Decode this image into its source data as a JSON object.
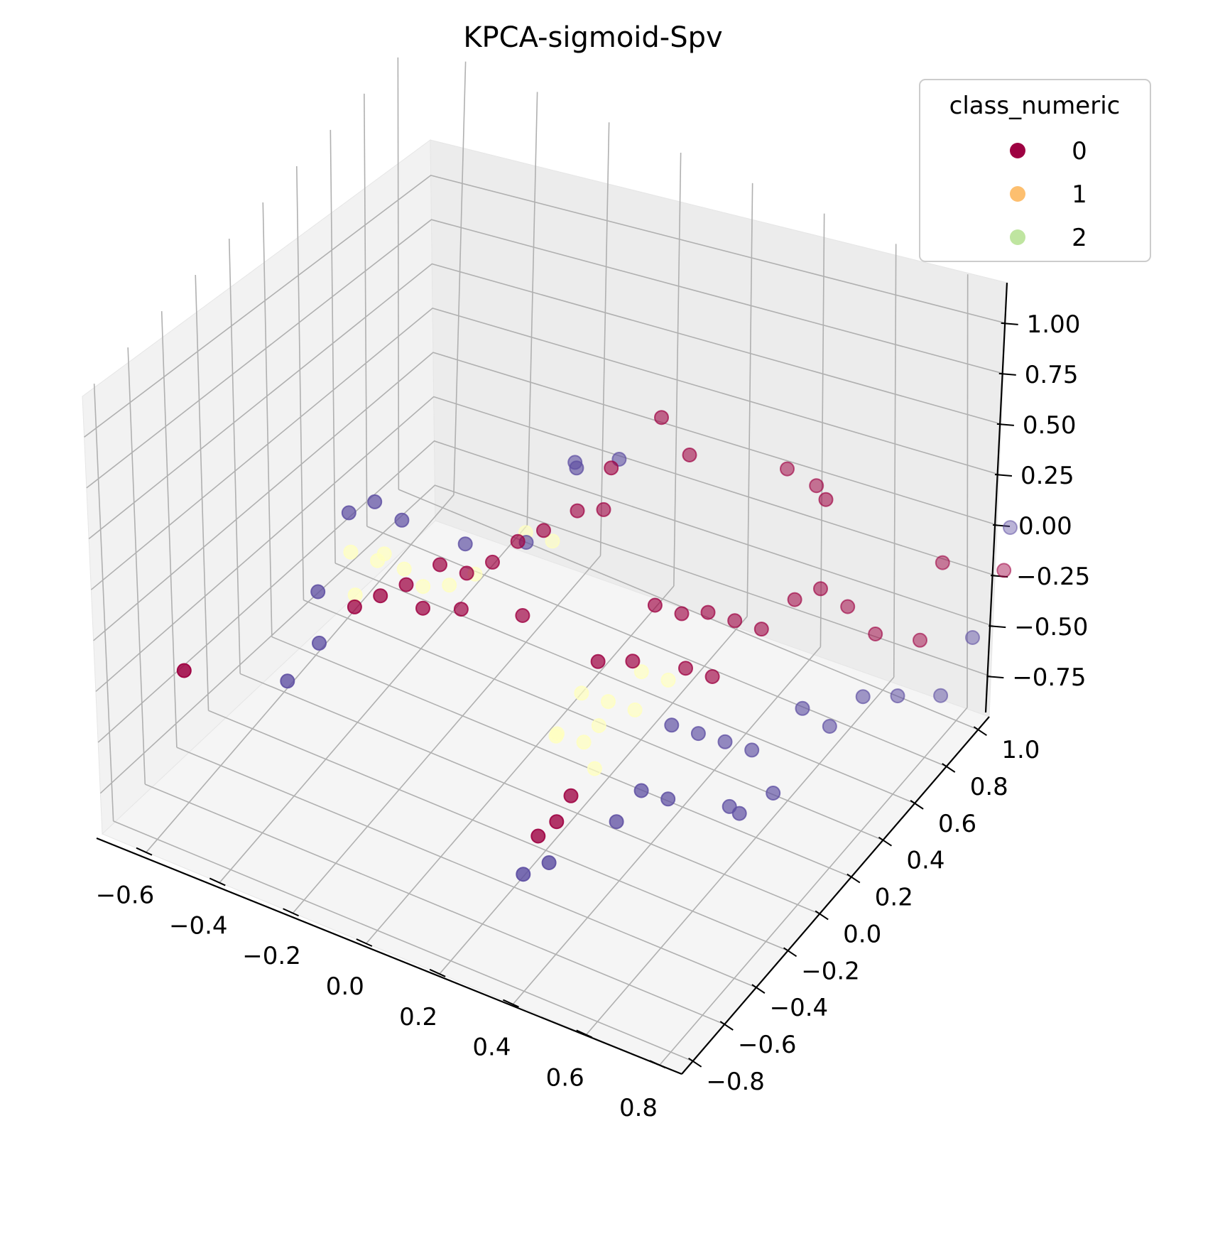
{
  "chart_data": {
    "type": "scatter",
    "title": "KPCA-sigmoid-Spv",
    "xlabel": "",
    "ylabel": "",
    "zlabel": "",
    "x_ticks": [
      "−0.6",
      "−0.4",
      "−0.2",
      "0.0",
      "0.2",
      "0.4",
      "0.6",
      "0.8"
    ],
    "y_ticks": [
      "−0.8",
      "−0.6",
      "−0.4",
      "−0.2",
      "0.0",
      "0.2",
      "0.4",
      "0.6",
      "0.8",
      "1.0"
    ],
    "z_ticks": [
      "−0.75",
      "−0.50",
      "−0.25",
      "0.00",
      "0.25",
      "0.50",
      "0.75",
      "1.00"
    ],
    "legend": {
      "title": "class_numeric",
      "placement": "top-right",
      "entries": [
        {
          "label": "0",
          "color": "#9e0142"
        },
        {
          "label": "1",
          "color": "#fdbf6f"
        },
        {
          "label": "2",
          "color": "#bfe5a0"
        }
      ]
    },
    "point_colors": {
      "class_0": "#9e0142",
      "class_1": "#ffffbf",
      "class_2": "#5e4fa2"
    },
    "grid": true,
    "series": [
      {
        "name": "0",
        "points": [
          [
            -0.62,
            -0.55,
            -0.35
          ],
          [
            -0.25,
            -0.15,
            -0.05
          ],
          [
            -0.2,
            -0.1,
            0.0
          ],
          [
            -0.15,
            0.0,
            0.05
          ],
          [
            -0.1,
            0.05,
            0.0
          ],
          [
            -0.05,
            0.1,
            0.05
          ],
          [
            0.0,
            0.15,
            0.15
          ],
          [
            0.05,
            0.2,
            0.2
          ],
          [
            0.1,
            0.3,
            0.25
          ],
          [
            0.15,
            0.35,
            0.25
          ],
          [
            -0.3,
            -0.2,
            -0.1
          ],
          [
            -0.18,
            -0.05,
            -0.15
          ],
          [
            -0.12,
            0.05,
            -0.2
          ],
          [
            0.05,
            0.05,
            -0.1
          ],
          [
            0.2,
            0.3,
            0.55
          ],
          [
            0.3,
            0.4,
            0.8
          ],
          [
            0.35,
            0.45,
            0.6
          ],
          [
            0.55,
            0.6,
            0.55
          ],
          [
            0.62,
            0.62,
            0.5
          ],
          [
            0.7,
            0.5,
            0.6
          ],
          [
            0.35,
            0.2,
            0.05
          ],
          [
            0.4,
            0.25,
            0.0
          ],
          [
            0.45,
            0.3,
            0.0
          ],
          [
            0.5,
            0.35,
            -0.05
          ],
          [
            0.55,
            0.4,
            -0.1
          ],
          [
            0.6,
            0.5,
            0.0
          ],
          [
            0.65,
            0.55,
            0.05
          ],
          [
            0.7,
            0.6,
            -0.05
          ],
          [
            0.45,
            0.15,
            -0.15
          ],
          [
            0.5,
            0.2,
            -0.2
          ],
          [
            0.35,
            0.05,
            -0.1
          ],
          [
            0.3,
            -0.05,
            -0.05
          ],
          [
            0.28,
            -0.3,
            -0.65
          ],
          [
            0.25,
            -0.35,
            -0.7
          ],
          [
            0.3,
            -0.25,
            -0.55
          ],
          [
            0.75,
            0.65,
            -0.2
          ],
          [
            0.9,
            0.75,
            0.2
          ],
          [
            1.0,
            0.9,
            0.1
          ],
          [
            0.85,
            0.7,
            -0.2
          ]
        ]
      },
      {
        "name": "1",
        "points": [
          [
            -0.35,
            -0.1,
            0.05
          ],
          [
            -0.3,
            -0.05,
            0.0
          ],
          [
            -0.25,
            0.0,
            -0.05
          ],
          [
            -0.2,
            0.0,
            -0.1
          ],
          [
            -0.15,
            0.05,
            -0.1
          ],
          [
            -0.1,
            0.1,
            -0.05
          ],
          [
            -0.32,
            -0.15,
            -0.1
          ],
          [
            -0.28,
            -0.05,
            0.05
          ],
          [
            0.0,
            0.2,
            0.15
          ],
          [
            0.05,
            0.25,
            0.1
          ],
          [
            0.25,
            -0.05,
            -0.25
          ],
          [
            0.3,
            0.0,
            -0.3
          ],
          [
            0.35,
            0.05,
            -0.35
          ],
          [
            0.2,
            -0.1,
            -0.45
          ],
          [
            0.25,
            -0.05,
            -0.5
          ],
          [
            0.3,
            -0.1,
            -0.55
          ],
          [
            0.22,
            -0.15,
            -0.4
          ],
          [
            0.35,
            0.1,
            -0.2
          ],
          [
            0.4,
            0.15,
            -0.25
          ],
          [
            0.28,
            -0.02,
            -0.42
          ]
        ]
      },
      {
        "name": "2",
        "points": [
          [
            -0.35,
            -0.1,
            0.25
          ],
          [
            -0.3,
            -0.05,
            0.3
          ],
          [
            -0.25,
            0.0,
            0.2
          ],
          [
            -0.4,
            -0.2,
            -0.1
          ],
          [
            -0.38,
            -0.25,
            -0.3
          ],
          [
            -0.45,
            -0.3,
            -0.5
          ],
          [
            -0.1,
            0.05,
            0.15
          ],
          [
            0.0,
            0.2,
            0.1
          ],
          [
            0.1,
            0.3,
            0.5
          ],
          [
            0.2,
            0.35,
            0.55
          ],
          [
            0.15,
            0.2,
            0.6
          ],
          [
            0.45,
            0.05,
            -0.35
          ],
          [
            0.5,
            0.1,
            -0.4
          ],
          [
            0.55,
            0.15,
            -0.45
          ],
          [
            0.6,
            0.2,
            -0.5
          ],
          [
            0.5,
            -0.1,
            -0.55
          ],
          [
            0.45,
            -0.15,
            -0.5
          ],
          [
            0.4,
            -0.2,
            -0.65
          ],
          [
            0.25,
            -0.45,
            -0.8
          ],
          [
            0.3,
            -0.4,
            -0.75
          ],
          [
            0.7,
            0.3,
            -0.3
          ],
          [
            0.75,
            0.35,
            -0.4
          ],
          [
            0.8,
            0.45,
            -0.3
          ],
          [
            0.85,
            0.55,
            -0.35
          ],
          [
            0.9,
            0.7,
            -0.45
          ],
          [
            1.0,
            0.95,
            0.28
          ],
          [
            0.95,
            0.8,
            -0.2
          ],
          [
            0.65,
            0.0,
            -0.6
          ],
          [
            0.7,
            0.1,
            -0.55
          ],
          [
            0.6,
            0.05,
            -0.65
          ]
        ]
      }
    ]
  }
}
